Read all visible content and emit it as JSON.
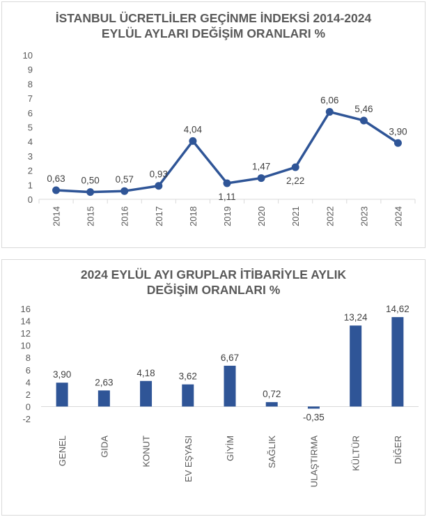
{
  "chart_data": [
    {
      "type": "line",
      "title_line1": "İSTANBUL ÜCRETLİLER GEÇİNME İNDEKSİ 2014-2024",
      "title_line2": "EYLÜL AYLARI DEĞİŞİM ORANLARI %",
      "categories": [
        "2014",
        "2015",
        "2016",
        "2017",
        "2018",
        "2019",
        "2020",
        "2021",
        "2022",
        "2023",
        "2024"
      ],
      "values": [
        0.63,
        0.5,
        0.57,
        0.93,
        4.04,
        1.11,
        1.47,
        2.22,
        6.06,
        5.46,
        3.9
      ],
      "data_labels": [
        "0,63",
        "0,50",
        "0,57",
        "0,93",
        "4,04",
        "1,11",
        "1,47",
        "2,22",
        "6,06",
        "5,46",
        "3,90"
      ],
      "ylim": [
        0,
        10
      ],
      "yticks": [
        "0",
        "1",
        "2",
        "3",
        "4",
        "5",
        "6",
        "7",
        "8",
        "9",
        "10"
      ],
      "color": "#2f5597",
      "grid": false,
      "legend": "none"
    },
    {
      "type": "bar",
      "title_line1": "2024 EYLÜL AYI GRUPLAR İTİBARİYLE AYLIK",
      "title_line2": "DEĞİŞİM ORANLARI %",
      "categories": [
        "GENEL",
        "GIDA",
        "KONUT",
        "EV EŞYASI",
        "GİYİM",
        "SAĞLIK",
        "ULAŞTIRMA",
        "KÜLTÜR",
        "DİĞER"
      ],
      "values": [
        3.9,
        2.63,
        4.18,
        3.62,
        6.67,
        0.72,
        -0.35,
        13.24,
        14.62
      ],
      "data_labels": [
        "3,90",
        "2,63",
        "4,18",
        "3,62",
        "6,67",
        "0,72",
        "-0,35",
        "13,24",
        "14,62"
      ],
      "ylim": [
        -2,
        16
      ],
      "yticks": [
        "-2",
        "0",
        "2",
        "4",
        "6",
        "8",
        "10",
        "12",
        "14",
        "16"
      ],
      "color": "#2f5597",
      "grid": false,
      "legend": "none"
    }
  ]
}
